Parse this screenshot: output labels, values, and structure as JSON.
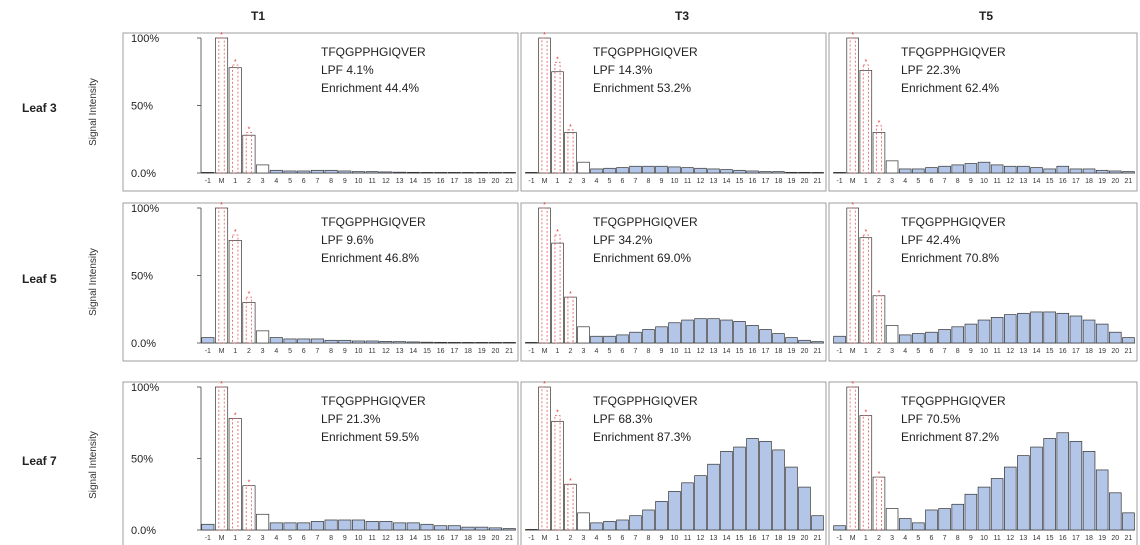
{
  "figure": {
    "col_titles": [
      "T1",
      "T3",
      "T5"
    ],
    "row_labels": [
      "Leaf 3",
      "Leaf 5",
      "Leaf 7"
    ],
    "ylabel": "Signal Intensity",
    "y_ticks": [
      "100%",
      "50%",
      "0.0%"
    ],
    "x_ticks": [
      "-1",
      "M",
      "1",
      "2",
      "3",
      "4",
      "5",
      "6",
      "7",
      "8",
      "9",
      "10",
      "11",
      "12",
      "13",
      "14",
      "15",
      "16",
      "17",
      "18",
      "19",
      "20",
      "21"
    ]
  },
  "chart_data": [
    {
      "type": "bar",
      "row": "Leaf 3",
      "col": "T1",
      "peptide": "TFQGPPHGIQVER",
      "lpf": "LPF 4.1%",
      "enrichment": "Enrichment 44.4%",
      "categories": [
        "-1",
        "M",
        "1",
        "2",
        "3",
        "4",
        "5",
        "6",
        "7",
        "8",
        "9",
        "10",
        "11",
        "12",
        "13",
        "14",
        "15",
        "16",
        "17",
        "18",
        "19",
        "20",
        "21"
      ],
      "values": [
        0,
        100,
        78,
        28,
        6,
        2,
        1.5,
        1.5,
        2,
        2,
        1.5,
        1,
        1,
        0.8,
        0.6,
        0.5,
        0.4,
        0.3,
        0.3,
        0.2,
        0.2,
        0.1,
        0.1
      ],
      "theoretical": [
        null,
        100,
        80,
        30,
        null,
        null,
        null,
        null,
        null,
        null,
        null,
        null,
        null,
        null,
        null,
        null,
        null,
        null,
        null,
        null,
        null,
        null,
        null
      ],
      "ylim": [
        0,
        100
      ]
    },
    {
      "type": "bar",
      "row": "Leaf 3",
      "col": "T3",
      "peptide": "TFQGPPHGIQVER",
      "lpf": "LPF 14.3%",
      "enrichment": "Enrichment 53.2%",
      "categories": [
        "-1",
        "M",
        "1",
        "2",
        "3",
        "4",
        "5",
        "6",
        "7",
        "8",
        "9",
        "10",
        "11",
        "12",
        "13",
        "14",
        "15",
        "16",
        "17",
        "18",
        "19",
        "20",
        "21"
      ],
      "values": [
        0,
        100,
        75,
        30,
        8,
        3,
        3.5,
        4,
        5,
        5,
        5,
        4.5,
        4,
        3.5,
        3,
        2.5,
        2,
        1.5,
        1,
        1,
        0.5,
        0.5,
        0.3
      ],
      "theoretical": [
        null,
        100,
        82,
        32,
        null,
        null,
        null,
        null,
        null,
        null,
        null,
        null,
        null,
        null,
        null,
        null,
        null,
        null,
        null,
        null,
        null,
        null,
        null
      ],
      "ylim": [
        0,
        100
      ]
    },
    {
      "type": "bar",
      "row": "Leaf 3",
      "col": "T5",
      "peptide": "TFQGPPHGIQVER",
      "lpf": "LPF 22.3%",
      "enrichment": "Enrichment 62.4%",
      "categories": [
        "-1",
        "M",
        "1",
        "2",
        "3",
        "4",
        "5",
        "6",
        "7",
        "8",
        "9",
        "10",
        "11",
        "12",
        "13",
        "14",
        "15",
        "16",
        "17",
        "18",
        "19",
        "20",
        "21"
      ],
      "values": [
        0,
        100,
        76,
        30,
        9,
        3,
        3,
        4,
        5,
        6,
        7,
        8,
        6,
        5,
        5,
        4,
        3,
        5,
        3,
        3,
        2,
        1.5,
        1
      ],
      "theoretical": [
        null,
        100,
        80,
        35,
        null,
        null,
        null,
        null,
        null,
        null,
        null,
        null,
        null,
        null,
        null,
        null,
        null,
        null,
        null,
        null,
        null,
        null,
        null
      ],
      "ylim": [
        0,
        100
      ]
    },
    {
      "type": "bar",
      "row": "Leaf 5",
      "col": "T1",
      "peptide": "TFQGPPHGIQVER",
      "lpf": "LPF 9.6%",
      "enrichment": "Enrichment 46.8%",
      "categories": [
        "-1",
        "M",
        "1",
        "2",
        "3",
        "4",
        "5",
        "6",
        "7",
        "8",
        "9",
        "10",
        "11",
        "12",
        "13",
        "14",
        "15",
        "16",
        "17",
        "18",
        "19",
        "20",
        "21"
      ],
      "values": [
        4,
        100,
        76,
        30,
        9,
        4,
        3,
        3,
        3,
        2,
        2,
        1.5,
        1.5,
        1.2,
        1,
        0.8,
        0.6,
        0.5,
        0.4,
        0.3,
        0.3,
        0.2,
        0.1
      ],
      "theoretical": [
        null,
        100,
        80,
        34,
        null,
        null,
        null,
        null,
        null,
        null,
        null,
        null,
        null,
        null,
        null,
        null,
        null,
        null,
        null,
        null,
        null,
        null,
        null
      ],
      "ylim": [
        0,
        100
      ]
    },
    {
      "type": "bar",
      "row": "Leaf 5",
      "col": "T3",
      "peptide": "TFQGPPHGIQVER",
      "lpf": "LPF 34.2%",
      "enrichment": "Enrichment 69.0%",
      "categories": [
        "-1",
        "M",
        "1",
        "2",
        "3",
        "4",
        "5",
        "6",
        "7",
        "8",
        "9",
        "10",
        "11",
        "12",
        "13",
        "14",
        "15",
        "16",
        "17",
        "18",
        "19",
        "20",
        "21"
      ],
      "values": [
        0,
        100,
        74,
        34,
        12,
        5,
        5,
        6,
        8,
        10,
        12,
        15,
        17,
        18,
        18,
        17,
        16,
        13,
        10,
        7,
        4,
        2,
        1
      ],
      "theoretical": [
        null,
        100,
        80,
        null,
        null,
        null,
        null,
        null,
        null,
        null,
        null,
        null,
        null,
        null,
        null,
        null,
        null,
        null,
        null,
        null,
        null,
        null,
        null
      ],
      "ylim": [
        0,
        100
      ]
    },
    {
      "type": "bar",
      "row": "Leaf 5",
      "col": "T5",
      "peptide": "TFQGPPHGIQVER",
      "lpf": "LPF 42.4%",
      "enrichment": "Enrichment 70.8%",
      "categories": [
        "-1",
        "M",
        "1",
        "2",
        "3",
        "4",
        "5",
        "6",
        "7",
        "8",
        "9",
        "10",
        "11",
        "12",
        "13",
        "14",
        "15",
        "16",
        "17",
        "18",
        "19",
        "20",
        "21"
      ],
      "values": [
        5,
        100,
        78,
        35,
        13,
        6,
        7,
        8,
        10,
        12,
        14,
        17,
        19,
        21,
        22,
        23,
        23,
        22,
        20,
        17,
        14,
        8,
        4
      ],
      "theoretical": [
        null,
        100,
        80,
        null,
        null,
        null,
        null,
        null,
        null,
        null,
        null,
        null,
        null,
        null,
        null,
        null,
        null,
        null,
        null,
        null,
        null,
        null,
        null
      ],
      "ylim": [
        0,
        100
      ]
    },
    {
      "type": "bar",
      "row": "Leaf 7",
      "col": "T1",
      "peptide": "TFQGPPHGIQVER",
      "lpf": "LPF 21.3%",
      "enrichment": "Enrichment 59.5%",
      "categories": [
        "-1",
        "M",
        "1",
        "2",
        "3",
        "4",
        "5",
        "6",
        "7",
        "8",
        "9",
        "10",
        "11",
        "12",
        "13",
        "14",
        "15",
        "16",
        "17",
        "18",
        "19",
        "20",
        "21"
      ],
      "values": [
        4,
        100,
        78,
        31,
        11,
        5,
        5,
        5,
        6,
        7,
        7,
        7,
        6,
        6,
        5,
        5,
        4,
        3,
        3,
        2,
        2,
        1.5,
        1
      ],
      "theoretical": [
        null,
        100,
        null,
        null,
        null,
        null,
        null,
        null,
        null,
        null,
        null,
        null,
        null,
        null,
        null,
        null,
        null,
        null,
        null,
        null,
        null,
        null,
        null
      ],
      "ylim": [
        0,
        100
      ]
    },
    {
      "type": "bar",
      "row": "Leaf 7",
      "col": "T3",
      "peptide": "TFQGPPHGIQVER",
      "lpf": "LPF 68.3%",
      "enrichment": "Enrichment 87.3%",
      "categories": [
        "-1",
        "M",
        "1",
        "2",
        "3",
        "4",
        "5",
        "6",
        "7",
        "8",
        "9",
        "10",
        "11",
        "12",
        "13",
        "14",
        "15",
        "16",
        "17",
        "18",
        "19",
        "20",
        "21"
      ],
      "values": [
        0,
        100,
        76,
        32,
        12,
        5,
        6,
        7,
        10,
        14,
        20,
        27,
        33,
        38,
        46,
        55,
        58,
        64,
        62,
        56,
        44,
        30,
        10
      ],
      "theoretical": [
        null,
        100,
        80,
        null,
        null,
        null,
        null,
        null,
        null,
        null,
        null,
        null,
        null,
        null,
        null,
        null,
        null,
        null,
        null,
        null,
        null,
        null,
        null
      ],
      "ylim": [
        0,
        100
      ]
    },
    {
      "type": "bar",
      "row": "Leaf 7",
      "col": "T5",
      "peptide": "TFQGPPHGIQVER",
      "lpf": "LPF 70.5%",
      "enrichment": "Enrichment 87.2%",
      "categories": [
        "-1",
        "M",
        "1",
        "2",
        "3",
        "4",
        "5",
        "6",
        "7",
        "8",
        "9",
        "10",
        "11",
        "12",
        "13",
        "14",
        "15",
        "16",
        "17",
        "18",
        "19",
        "20",
        "21"
      ],
      "values": [
        3,
        100,
        80,
        37,
        15,
        8,
        5,
        14,
        15,
        18,
        25,
        30,
        36,
        44,
        52,
        58,
        64,
        68,
        62,
        55,
        42,
        26,
        12
      ],
      "theoretical": [
        null,
        100,
        null,
        null,
        null,
        null,
        null,
        null,
        null,
        null,
        null,
        null,
        null,
        null,
        null,
        null,
        null,
        null,
        null,
        null,
        null,
        null,
        null
      ],
      "ylim": [
        0,
        100
      ]
    }
  ]
}
